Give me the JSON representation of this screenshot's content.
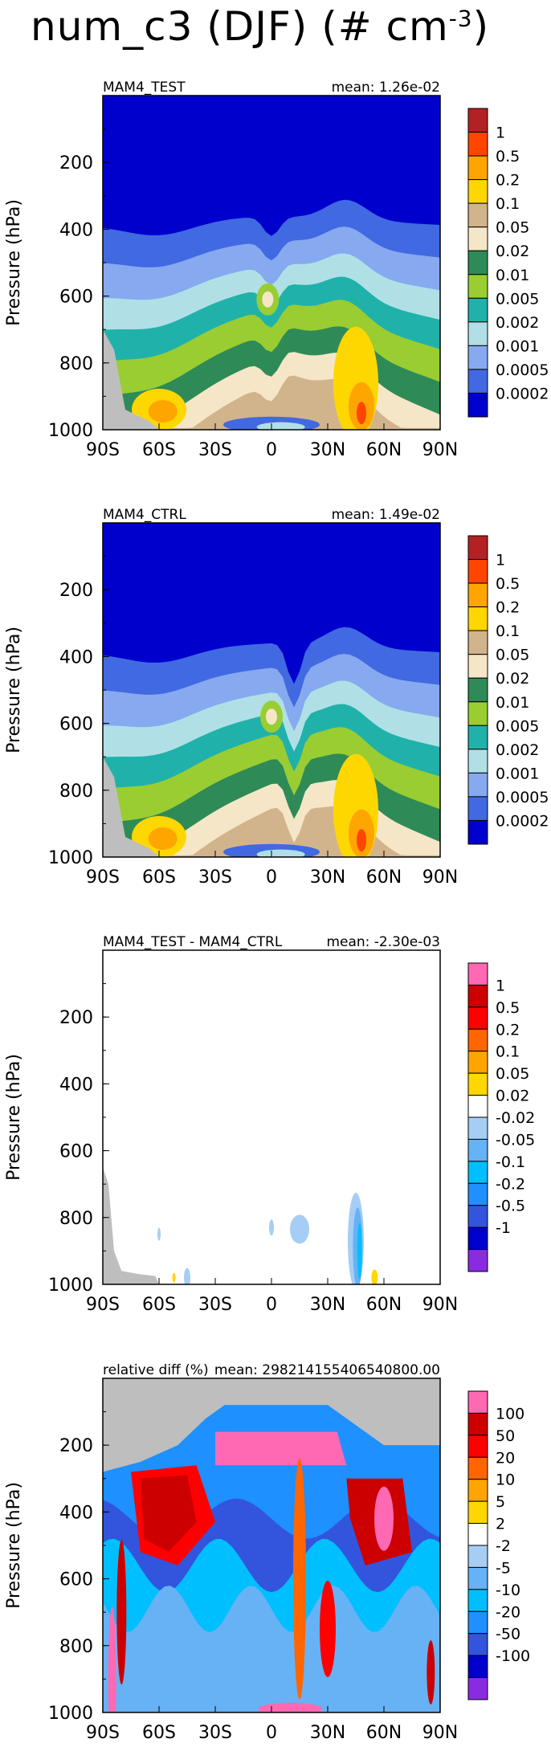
{
  "title": {
    "text": "num_c3 (DJF) (# cm",
    "exponent": "-3",
    "close": ")"
  },
  "chart_data": [
    {
      "type": "heatmap",
      "title": "MAM4_TEST",
      "subtitle": "mean: 1.26e-02",
      "ylabel": "Pressure (hPa)",
      "xticks": [
        "90S",
        "60S",
        "30S",
        "0",
        "30N",
        "60N",
        "90N"
      ],
      "yticks": [
        "200",
        "400",
        "600",
        "800",
        "1000"
      ],
      "ylim": [
        1000,
        0
      ],
      "colorbar": {
        "labels": [
          "1",
          "0.5",
          "0.2",
          "0.1",
          "0.05",
          "0.02",
          "0.01",
          "0.005",
          "0.002",
          "0.001",
          "0.0005",
          "0.0002"
        ],
        "colors": [
          "#B22222",
          "#FF4500",
          "#FFA500",
          "#FFD700",
          "#D2B48C",
          "#F5E6C8",
          "#2E8B57",
          "#9ACD32",
          "#20B2AA",
          "#B0E0E6",
          "#87A9F0",
          "#4169E1",
          "#0000CD"
        ]
      }
    },
    {
      "type": "heatmap",
      "title": "MAM4_CTRL",
      "subtitle": "mean: 1.49e-02",
      "ylabel": "Pressure (hPa)",
      "xticks": [
        "90S",
        "60S",
        "30S",
        "0",
        "30N",
        "60N",
        "90N"
      ],
      "yticks": [
        "200",
        "400",
        "600",
        "800",
        "1000"
      ],
      "ylim": [
        1000,
        0
      ],
      "colorbar": {
        "labels": [
          "1",
          "0.5",
          "0.2",
          "0.1",
          "0.05",
          "0.02",
          "0.01",
          "0.005",
          "0.002",
          "0.001",
          "0.0005",
          "0.0002"
        ],
        "colors": [
          "#B22222",
          "#FF4500",
          "#FFA500",
          "#FFD700",
          "#D2B48C",
          "#F5E6C8",
          "#2E8B57",
          "#9ACD32",
          "#20B2AA",
          "#B0E0E6",
          "#87A9F0",
          "#4169E1",
          "#0000CD"
        ]
      }
    },
    {
      "type": "heatmap",
      "title": "MAM4_TEST - MAM4_CTRL",
      "subtitle": "mean: -2.30e-03",
      "ylabel": "Pressure (hPa)",
      "xticks": [
        "90S",
        "60S",
        "30S",
        "0",
        "30N",
        "60N",
        "90N"
      ],
      "yticks": [
        "200",
        "400",
        "600",
        "800",
        "1000"
      ],
      "ylim": [
        1000,
        0
      ],
      "colorbar": {
        "labels": [
          "1",
          "0.5",
          "0.2",
          "0.1",
          "0.05",
          "0.02",
          "-0.02",
          "-0.05",
          "-0.1",
          "-0.2",
          "-0.5",
          "-1"
        ],
        "colors": [
          "#FF69B4",
          "#CC0000",
          "#FF0000",
          "#FF6600",
          "#FFA500",
          "#FFD700",
          "#FFFFFF",
          "#A6CEF5",
          "#66B2F5",
          "#00BFFF",
          "#1E90FF",
          "#3355DD",
          "#0000CD",
          "#8A2BE2"
        ]
      }
    },
    {
      "type": "heatmap",
      "title": "relative diff (%)",
      "subtitle": "mean: 298214155406540800.00",
      "ylabel": "Pressure (hPa)",
      "xticks": [
        "90S",
        "60S",
        "30S",
        "0",
        "30N",
        "60N",
        "90N"
      ],
      "yticks": [
        "200",
        "400",
        "600",
        "800",
        "1000"
      ],
      "ylim": [
        1000,
        0
      ],
      "colorbar": {
        "labels": [
          "100",
          "50",
          "20",
          "10",
          "5",
          "2",
          "-2",
          "-5",
          "-10",
          "-20",
          "-50",
          "-100"
        ],
        "colors": [
          "#FF69B4",
          "#CC0000",
          "#FF0000",
          "#FF6600",
          "#FFA500",
          "#FFD700",
          "#FFFFFF",
          "#A6CEF5",
          "#66B2F5",
          "#00BFFF",
          "#1E90FF",
          "#3355DD",
          "#0000CD",
          "#8A2BE2"
        ]
      }
    }
  ]
}
